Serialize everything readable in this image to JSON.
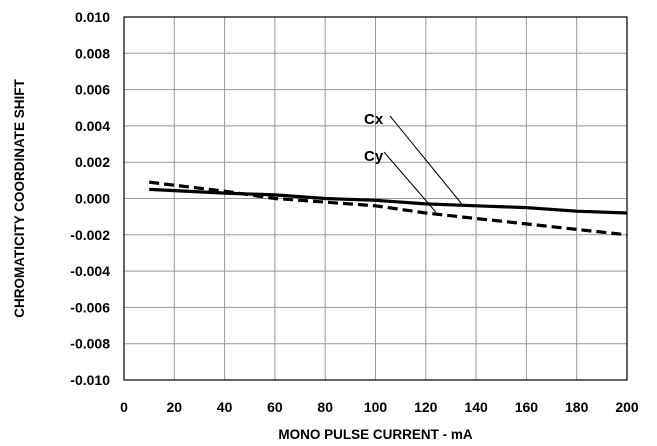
{
  "chart_data": {
    "type": "line",
    "xlabel": "MONO PULSE CURRENT - mA",
    "ylabel": "CHROMATICITY COORDINATE SHIFT",
    "xlim": [
      0,
      200
    ],
    "ylim": [
      -0.01,
      0.01
    ],
    "x_ticks": [
      "0",
      "20",
      "40",
      "60",
      "80",
      "100",
      "120",
      "140",
      "160",
      "180",
      "200"
    ],
    "y_ticks": [
      "0.010",
      "0.008",
      "0.006",
      "0.004",
      "0.002",
      "0.000",
      "-0.002",
      "-0.004",
      "-0.006",
      "-0.008",
      "-0.010"
    ],
    "grid": true,
    "legend": "none",
    "series": [
      {
        "name": "Cx",
        "style": "solid",
        "x": [
          10,
          40,
          60,
          80,
          100,
          120,
          140,
          160,
          180,
          200
        ],
        "y": [
          0.0005,
          0.0003,
          0.0002,
          0.0,
          -0.0001,
          -0.0003,
          -0.0004,
          -0.0005,
          -0.0007,
          -0.0008
        ]
      },
      {
        "name": "Cy",
        "style": "dashed",
        "x": [
          10,
          40,
          60,
          80,
          100,
          120,
          140,
          160,
          180,
          200
        ],
        "y": [
          0.0009,
          0.0004,
          0.0,
          -0.0002,
          -0.0004,
          -0.0008,
          -0.0011,
          -0.0014,
          -0.0017,
          -0.002
        ]
      }
    ],
    "annotations": [
      {
        "text": "Cx",
        "points_to": [
          135,
          -0.00042
        ]
      },
      {
        "text": "Cy",
        "points_to": [
          124,
          -0.00075
        ]
      }
    ],
    "colors": {
      "line": "#000000",
      "grid": "#999999",
      "background": "#ffffff"
    }
  }
}
